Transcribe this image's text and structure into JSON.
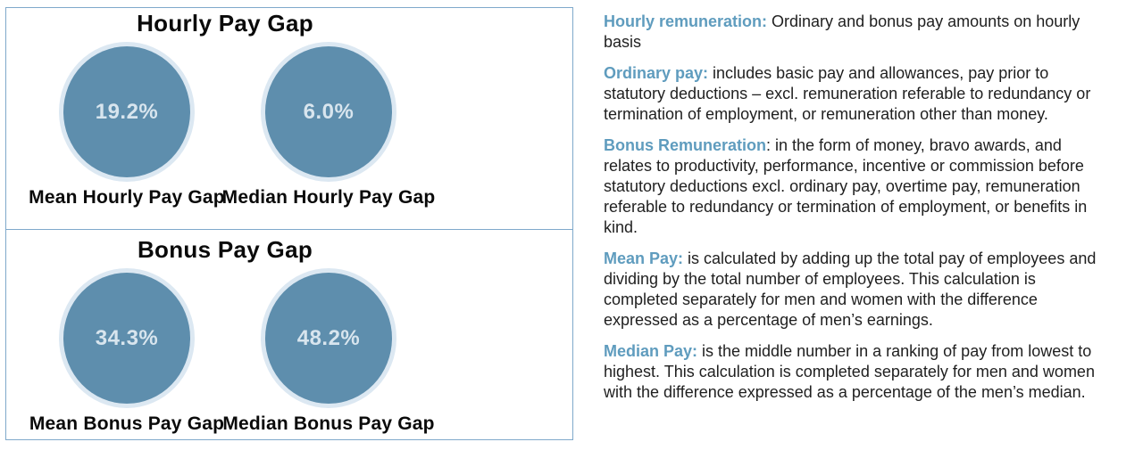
{
  "colors": {
    "circle_fill": "#5e8ead",
    "circle_halo": "#dce8f2",
    "circle_value_text": "#d8e5ee",
    "panel_border": "#7fa9cb",
    "term_blue": "#5f9cbe",
    "body_text": "#1f1f1f",
    "heading_black": "#0a0a0a"
  },
  "panels": [
    {
      "title": "Hourly Pay Gap",
      "circles": [
        {
          "value": "19.2%",
          "label": "Mean Hourly Pay Gap"
        },
        {
          "value": "6.0%",
          "label": "Median Hourly Pay Gap"
        }
      ]
    },
    {
      "title": "Bonus Pay Gap",
      "circles": [
        {
          "value": "34.3%",
          "label": "Mean Bonus Pay Gap"
        },
        {
          "value": "48.2%",
          "label": "Median Bonus Pay Gap"
        }
      ]
    }
  ],
  "definitions": [
    {
      "term": "Hourly remuneration:",
      "text": " Ordinary and bonus pay amounts on hourly basis"
    },
    {
      "term": "Ordinary pay:",
      "text": " includes basic pay and allowances, pay prior to statutory deductions – excl. remuneration referable to redundancy or termination of employment, or remuneration other than money."
    },
    {
      "term": "Bonus Remuneration",
      "text": ": in the form of money, bravo awards, and relates to productivity, performance, incentive or commission before statutory deductions excl. ordinary pay, overtime pay, remuneration referable to redundancy or termination of employment, or benefits in kind."
    },
    {
      "term": "Mean Pay:",
      "text": " is calculated by adding up the total pay of employees and dividing by the total number of employees. This calculation is completed separately for men and women with the difference expressed as a percentage of men’s earnings."
    },
    {
      "term": "Median Pay:",
      "text": " is the middle number in a ranking of pay from lowest to highest. This calculation is completed separately for men and women with the difference expressed as a percentage of the men’s median."
    }
  ],
  "chart_data": [
    {
      "type": "pie",
      "subtype": "single-value-kpi-circles",
      "title": "Hourly Pay Gap",
      "categories": [
        "Mean Hourly Pay Gap",
        "Median Hourly Pay Gap"
      ],
      "values": [
        19.2,
        6.0
      ],
      "unit": "%",
      "legend_position": "below-each-circle"
    },
    {
      "type": "pie",
      "subtype": "single-value-kpi-circles",
      "title": "Bonus Pay Gap",
      "categories": [
        "Mean Bonus Pay Gap",
        "Median Bonus Pay Gap"
      ],
      "values": [
        34.3,
        48.2
      ],
      "unit": "%",
      "legend_position": "below-each-circle"
    }
  ]
}
